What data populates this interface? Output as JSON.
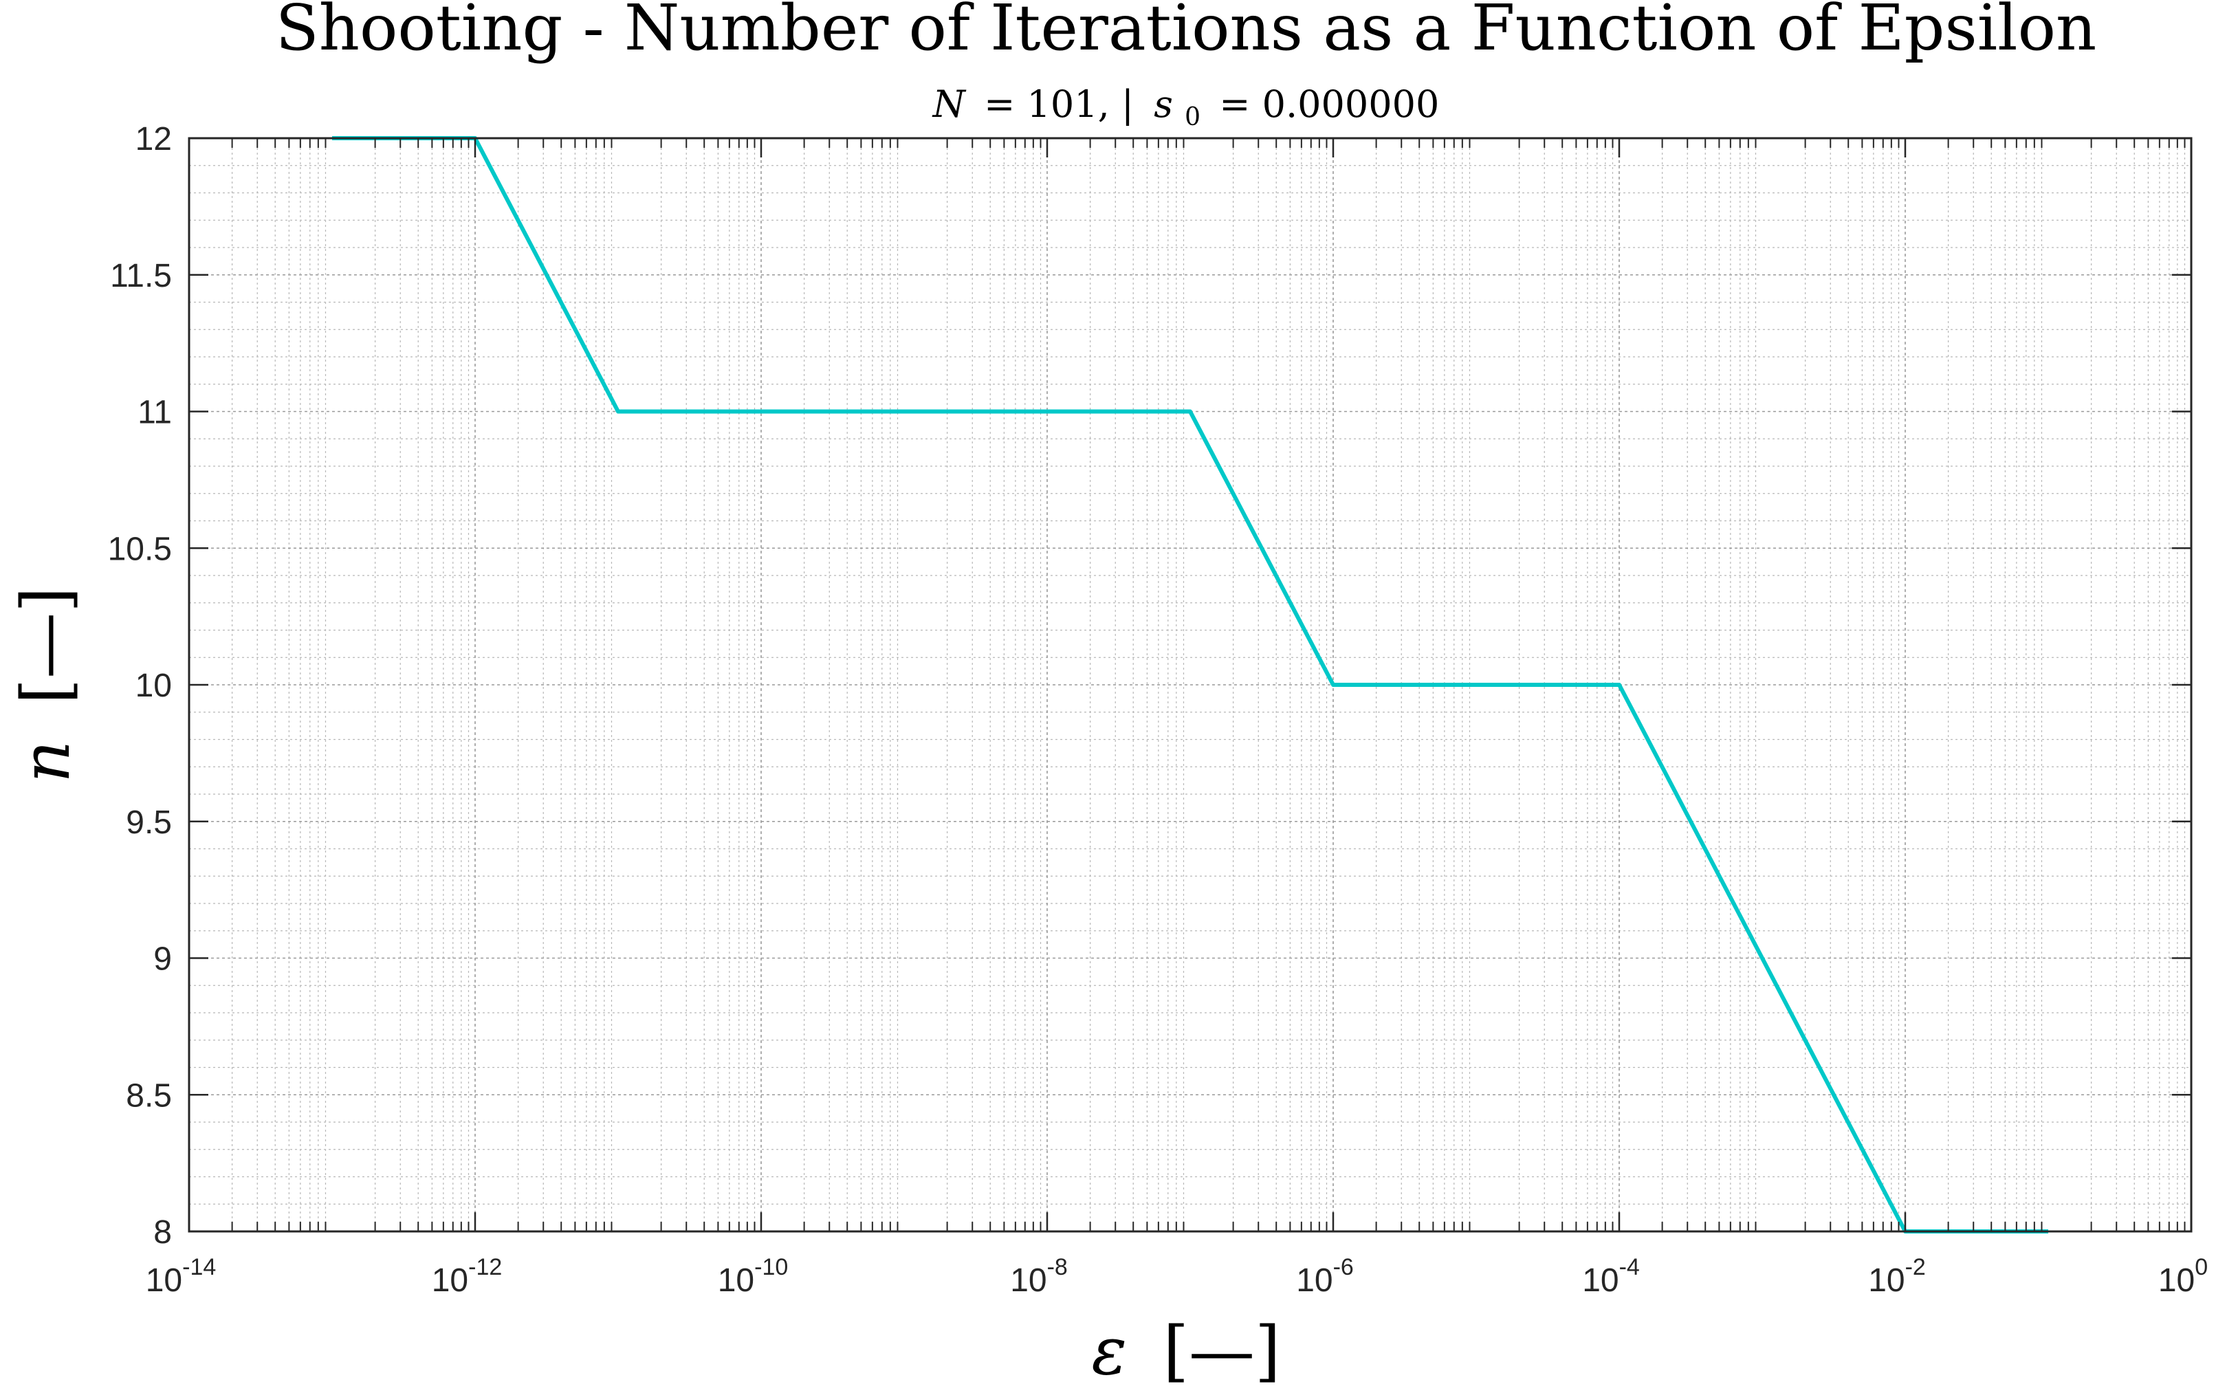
{
  "chart_data": {
    "type": "line",
    "title": "Shooting - Number of Iterations as a Function of Epsilon",
    "subtitle": {
      "n_symbol": "N",
      "n_value": "= 101, |",
      "s_symbol": "s",
      "s_subscript": "0",
      "s_value": "= 0.000000"
    },
    "xlabel": {
      "symbol": "ε",
      "unit": "[—]"
    },
    "ylabel": {
      "symbol": "n",
      "unit": "[—]"
    },
    "xscale": "log",
    "xlim": [
      1e-14,
      1
    ],
    "ylim": [
      8,
      12
    ],
    "x_ticks": [
      {
        "base": "10",
        "exp": "-14"
      },
      {
        "base": "10",
        "exp": "-12"
      },
      {
        "base": "10",
        "exp": "-10"
      },
      {
        "base": "10",
        "exp": "-8"
      },
      {
        "base": "10",
        "exp": "-6"
      },
      {
        "base": "10",
        "exp": "-4"
      },
      {
        "base": "10",
        "exp": "-2"
      },
      {
        "base": "10",
        "exp": "0"
      }
    ],
    "y_ticks": [
      "8",
      "8.5",
      "9",
      "9.5",
      "10",
      "10.5",
      "11",
      "11.5",
      "12"
    ],
    "grid": true,
    "minor_grid": true,
    "legend": "none",
    "series": [
      {
        "color": "#00c8c8",
        "x": [
          1e-13,
          1e-12,
          1e-11,
          1e-10,
          1e-09,
          1e-08,
          1e-07,
          1e-06,
          1e-05,
          0.0001,
          0.001,
          0.01,
          0.1
        ],
        "values": [
          12,
          12,
          11,
          11,
          11,
          11,
          11,
          10,
          10,
          10,
          9,
          8,
          8
        ]
      }
    ]
  }
}
